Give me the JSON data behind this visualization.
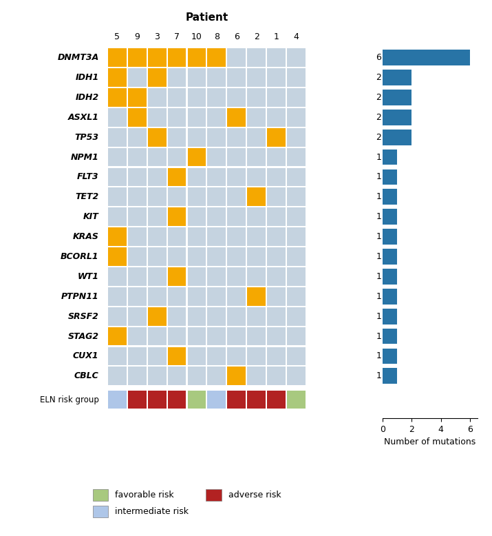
{
  "patients": [
    "5",
    "9",
    "3",
    "7",
    "10",
    "8",
    "6",
    "2",
    "1",
    "4"
  ],
  "genes": [
    "DNMT3A",
    "IDH1",
    "IDH2",
    "ASXL1",
    "TP53",
    "NPM1",
    "FLT3",
    "TET2",
    "KIT",
    "KRAS",
    "BCORL1",
    "WT1",
    "PTPN11",
    "SRSF2",
    "STAG2",
    "CUX1",
    "CBLC"
  ],
  "mutation_counts": [
    6,
    2,
    2,
    2,
    2,
    1,
    1,
    1,
    1,
    1,
    1,
    1,
    1,
    1,
    1,
    1,
    1
  ],
  "mutation_matrix": [
    [
      1,
      1,
      1,
      1,
      1,
      1,
      0,
      0,
      0,
      0
    ],
    [
      1,
      0,
      1,
      0,
      0,
      0,
      0,
      0,
      0,
      0
    ],
    [
      1,
      1,
      0,
      0,
      0,
      0,
      0,
      0,
      0,
      0
    ],
    [
      0,
      1,
      0,
      0,
      0,
      0,
      1,
      0,
      0,
      0
    ],
    [
      0,
      0,
      1,
      0,
      0,
      0,
      0,
      0,
      1,
      0
    ],
    [
      0,
      0,
      0,
      0,
      1,
      0,
      0,
      0,
      0,
      0
    ],
    [
      0,
      0,
      0,
      1,
      0,
      0,
      0,
      0,
      0,
      0
    ],
    [
      0,
      0,
      0,
      0,
      0,
      0,
      0,
      1,
      0,
      0
    ],
    [
      0,
      0,
      0,
      1,
      0,
      0,
      0,
      0,
      0,
      0
    ],
    [
      1,
      0,
      0,
      0,
      0,
      0,
      0,
      0,
      0,
      0
    ],
    [
      1,
      0,
      0,
      0,
      0,
      0,
      0,
      0,
      0,
      0
    ],
    [
      0,
      0,
      0,
      1,
      0,
      0,
      0,
      0,
      0,
      0
    ],
    [
      0,
      0,
      0,
      0,
      0,
      0,
      0,
      1,
      0,
      0
    ],
    [
      0,
      0,
      1,
      0,
      0,
      0,
      0,
      0,
      0,
      0
    ],
    [
      1,
      0,
      0,
      0,
      0,
      0,
      0,
      0,
      0,
      0
    ],
    [
      0,
      0,
      0,
      1,
      0,
      0,
      0,
      0,
      0,
      0
    ],
    [
      0,
      0,
      0,
      0,
      0,
      0,
      1,
      0,
      0,
      0
    ]
  ],
  "eln_risk": [
    "intermediate",
    "adverse",
    "adverse",
    "adverse",
    "favorable",
    "intermediate",
    "adverse",
    "adverse",
    "adverse",
    "favorable"
  ],
  "eln_colors": {
    "favorable": "#a8c97f",
    "intermediate": "#aec6e8",
    "adverse": "#b22222"
  },
  "mutation_color": "#f5a800",
  "background_color": "#c5d3e0",
  "bar_color": "#2874a6",
  "title": "Patient",
  "xlabel": "Number of mutations",
  "bar_xlim": [
    0,
    6
  ]
}
